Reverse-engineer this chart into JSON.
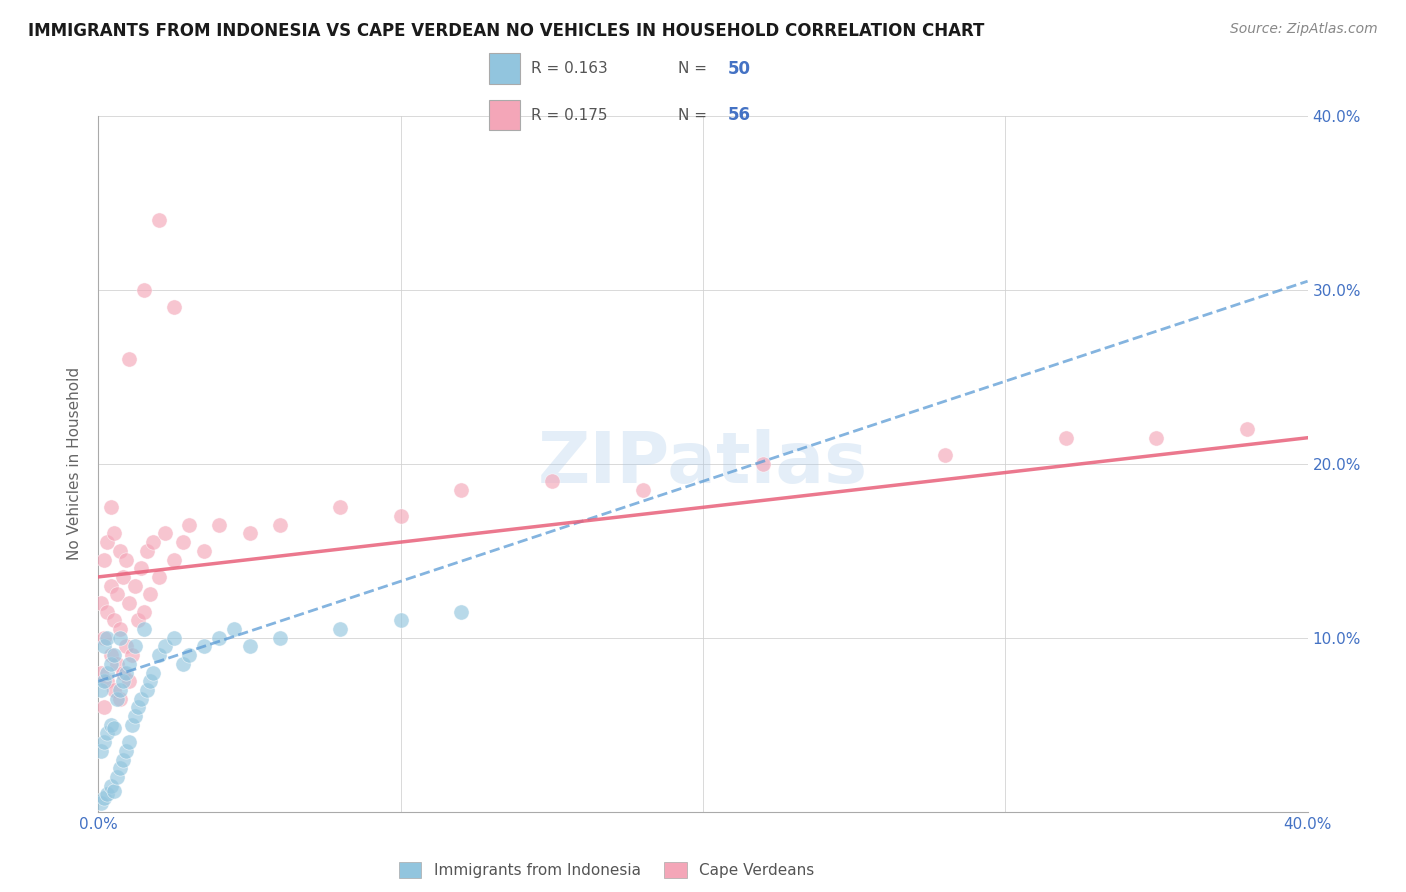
{
  "title": "IMMIGRANTS FROM INDONESIA VS CAPE VERDEAN NO VEHICLES IN HOUSEHOLD CORRELATION CHART",
  "source": "Source: ZipAtlas.com",
  "ylabel": "No Vehicles in Household",
  "xlim": [
    0.0,
    0.4
  ],
  "ylim": [
    0.0,
    0.4
  ],
  "xticks": [
    0.0,
    0.1,
    0.2,
    0.3,
    0.4
  ],
  "yticks": [
    0.0,
    0.1,
    0.2,
    0.3,
    0.4
  ],
  "xticklabels": [
    "0.0%",
    "",
    "",
    "",
    "40.0%"
  ],
  "right_yticklabels": [
    "10.0%",
    "20.0%",
    "30.0%",
    "40.0%"
  ],
  "right_yticks": [
    0.1,
    0.2,
    0.3,
    0.4
  ],
  "legend_r1": "R = 0.163",
  "legend_n1": "N = 50",
  "legend_r2": "R = 0.175",
  "legend_n2": "N = 56",
  "legend_label1": "Immigrants from Indonesia",
  "legend_label2": "Cape Verdeans",
  "color_blue": "#92c5de",
  "color_pink": "#f4a6b8",
  "color_blue_line": "#5b9bd5",
  "color_pink_line": "#e8607a",
  "color_grid": "#d0d0d0",
  "color_axis_labels": "#4472c4",
  "watermark": "ZIPatlas",
  "blue_scatter_x": [
    0.001,
    0.001,
    0.001,
    0.002,
    0.002,
    0.002,
    0.002,
    0.003,
    0.003,
    0.003,
    0.003,
    0.004,
    0.004,
    0.004,
    0.005,
    0.005,
    0.005,
    0.006,
    0.006,
    0.007,
    0.007,
    0.007,
    0.008,
    0.008,
    0.009,
    0.009,
    0.01,
    0.01,
    0.011,
    0.012,
    0.012,
    0.013,
    0.014,
    0.015,
    0.016,
    0.017,
    0.018,
    0.02,
    0.022,
    0.025,
    0.028,
    0.03,
    0.035,
    0.04,
    0.045,
    0.05,
    0.06,
    0.08,
    0.1,
    0.12
  ],
  "blue_scatter_y": [
    0.005,
    0.035,
    0.07,
    0.008,
    0.04,
    0.075,
    0.095,
    0.01,
    0.045,
    0.08,
    0.1,
    0.015,
    0.05,
    0.085,
    0.012,
    0.048,
    0.09,
    0.02,
    0.065,
    0.025,
    0.07,
    0.1,
    0.03,
    0.075,
    0.035,
    0.08,
    0.04,
    0.085,
    0.05,
    0.055,
    0.095,
    0.06,
    0.065,
    0.105,
    0.07,
    0.075,
    0.08,
    0.09,
    0.095,
    0.1,
    0.085,
    0.09,
    0.095,
    0.1,
    0.105,
    0.095,
    0.1,
    0.105,
    0.11,
    0.115
  ],
  "pink_scatter_x": [
    0.001,
    0.001,
    0.002,
    0.002,
    0.002,
    0.003,
    0.003,
    0.003,
    0.004,
    0.004,
    0.004,
    0.005,
    0.005,
    0.005,
    0.006,
    0.006,
    0.007,
    0.007,
    0.007,
    0.008,
    0.008,
    0.009,
    0.009,
    0.01,
    0.01,
    0.011,
    0.012,
    0.013,
    0.014,
    0.015,
    0.016,
    0.017,
    0.018,
    0.02,
    0.022,
    0.025,
    0.028,
    0.03,
    0.035,
    0.04,
    0.05,
    0.06,
    0.08,
    0.1,
    0.12,
    0.15,
    0.18,
    0.22,
    0.28,
    0.32,
    0.35,
    0.38,
    0.01,
    0.015,
    0.02,
    0.025
  ],
  "pink_scatter_y": [
    0.08,
    0.12,
    0.06,
    0.1,
    0.145,
    0.075,
    0.115,
    0.155,
    0.09,
    0.13,
    0.175,
    0.07,
    0.11,
    0.16,
    0.085,
    0.125,
    0.065,
    0.105,
    0.15,
    0.08,
    0.135,
    0.095,
    0.145,
    0.075,
    0.12,
    0.09,
    0.13,
    0.11,
    0.14,
    0.115,
    0.15,
    0.125,
    0.155,
    0.135,
    0.16,
    0.145,
    0.155,
    0.165,
    0.15,
    0.165,
    0.16,
    0.165,
    0.175,
    0.17,
    0.185,
    0.19,
    0.185,
    0.2,
    0.205,
    0.215,
    0.215,
    0.22,
    0.26,
    0.3,
    0.34,
    0.29
  ],
  "blue_line_x": [
    0.0,
    0.4
  ],
  "blue_line_y": [
    0.075,
    0.305
  ],
  "pink_line_x": [
    0.0,
    0.4
  ],
  "pink_line_y": [
    0.135,
    0.215
  ]
}
